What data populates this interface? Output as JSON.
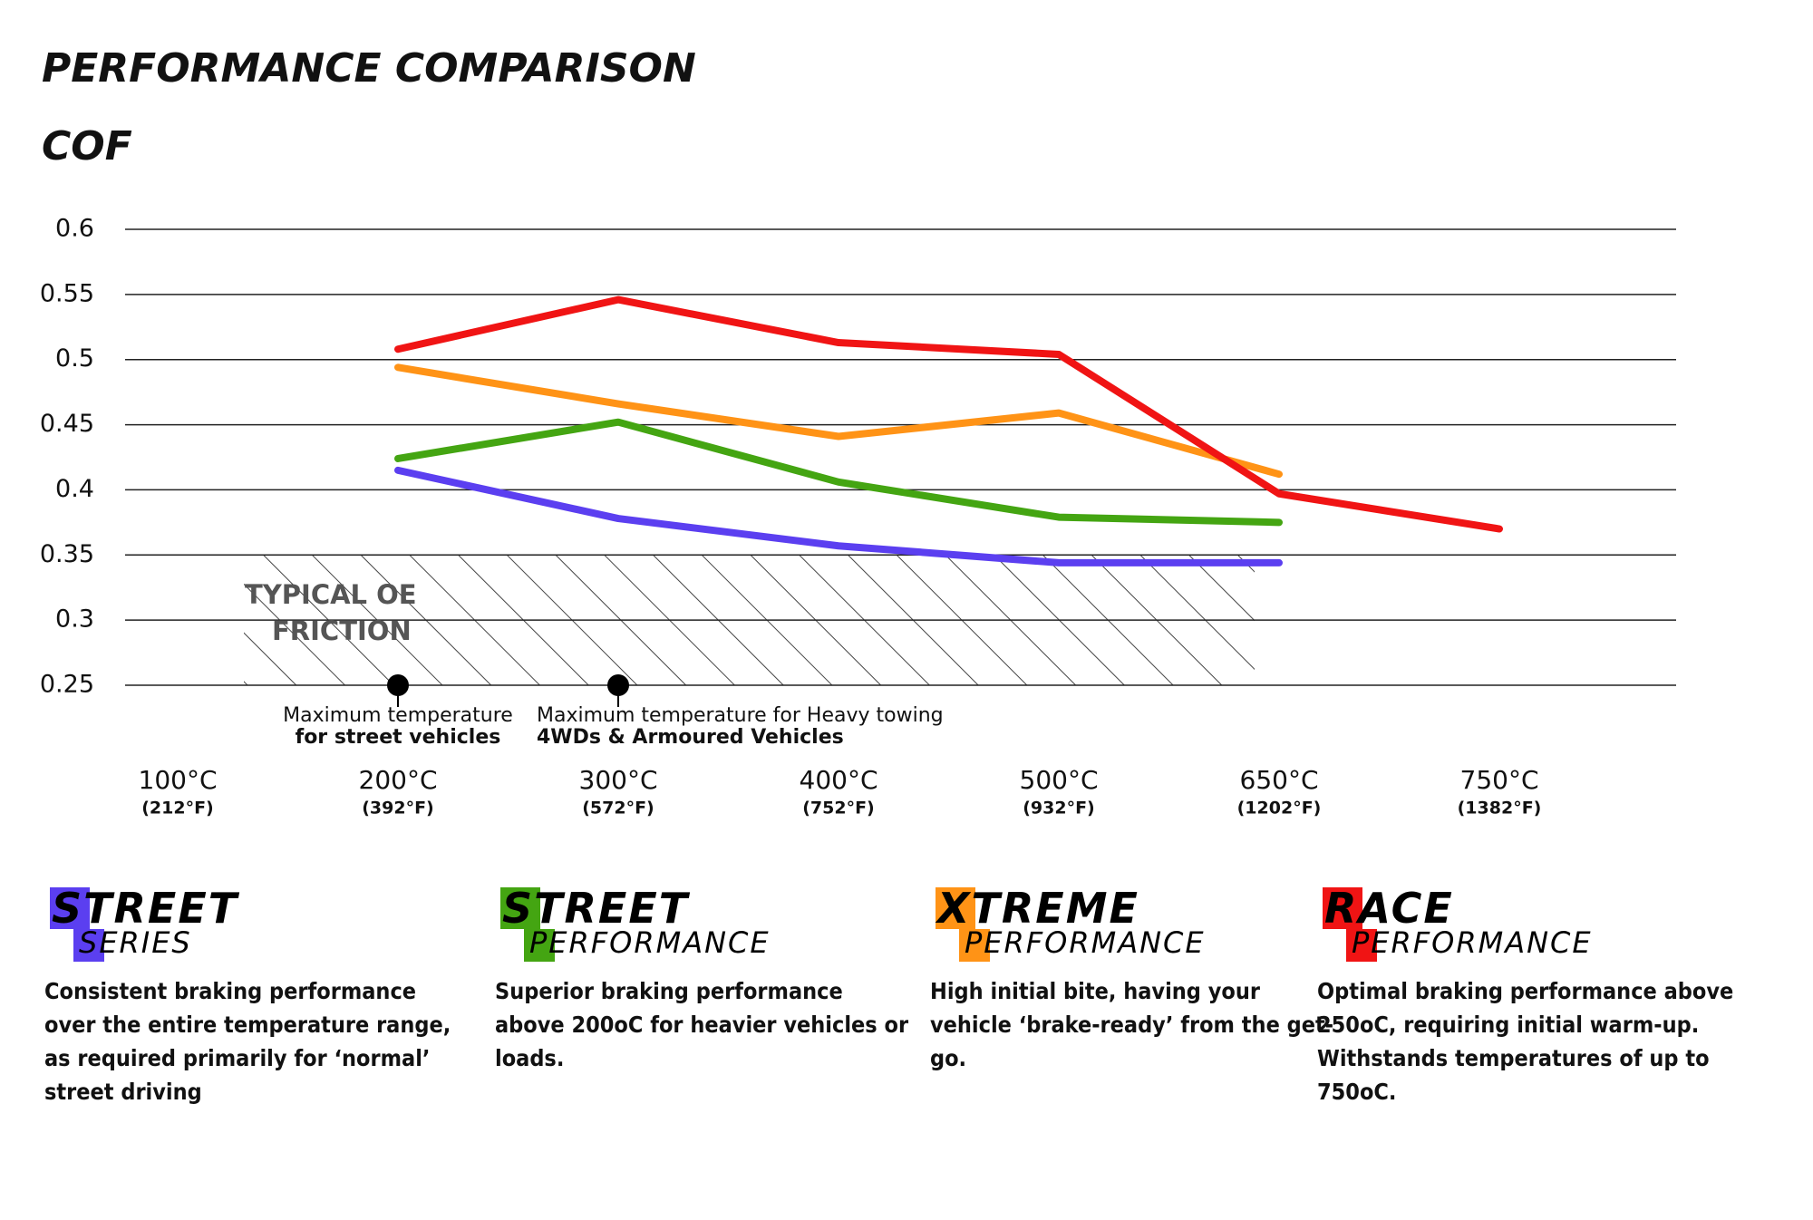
{
  "chart_data": {
    "type": "line",
    "title": "PERFORMANCE COMPARISON",
    "y_label": "COF",
    "categories": [
      "100°C",
      "200°C",
      "300°C",
      "400°C",
      "500°C",
      "650°C",
      "750°C"
    ],
    "sub_categories": [
      "(212°F)",
      "(392°F)",
      "(572°F)",
      "(752°F)",
      "(932°F)",
      "(1202°F)",
      "(1382°F)"
    ],
    "ylim": [
      0.25,
      0.6
    ],
    "yticks": [
      0.25,
      0.3,
      0.35,
      0.4,
      0.45,
      0.5,
      0.55,
      0.6
    ],
    "grid": true,
    "region_label": [
      "TYPICAL OE",
      "FRICTION"
    ],
    "annotations": [
      {
        "lines": [
          "Maximum temperature",
          "for street vehicles"
        ]
      },
      {
        "lines": [
          "Maximum temperature for Heavy towing",
          "4WDs & Armoured Vehicles"
        ]
      }
    ],
    "series": [
      {
        "name": "STREET",
        "subname": "SERIES",
        "color": "#5b3ff0",
        "values": [
          null,
          0.415,
          0.378,
          0.357,
          0.344,
          0.344,
          null
        ],
        "description": "Consistent braking performance over the entire temperature range, as required primarily for ‘normal’ street driving"
      },
      {
        "name": "STREET",
        "subname": "PERFORMANCE",
        "color": "#44a512",
        "values": [
          null,
          0.424,
          0.452,
          0.406,
          0.379,
          0.375,
          null
        ],
        "description": "Superior braking performance above 200oC for heavier vehicles or loads."
      },
      {
        "name": "XTREME",
        "subname": "PERFORMANCE",
        "color": "#ff9316",
        "values": [
          null,
          0.494,
          0.466,
          0.441,
          0.459,
          0.412,
          null
        ],
        "description": "High initial bite, having your vehicle ‘brake-ready’ from the get-go."
      },
      {
        "name": "RACE",
        "subname": "PERFORMANCE",
        "color": "#f01414",
        "values": [
          null,
          0.508,
          0.546,
          0.513,
          0.504,
          0.397,
          0.37
        ],
        "description": "Optimal braking performance above 250oC, requiring initial warm-up. Withstands temperatures of up to 750oC."
      }
    ]
  }
}
